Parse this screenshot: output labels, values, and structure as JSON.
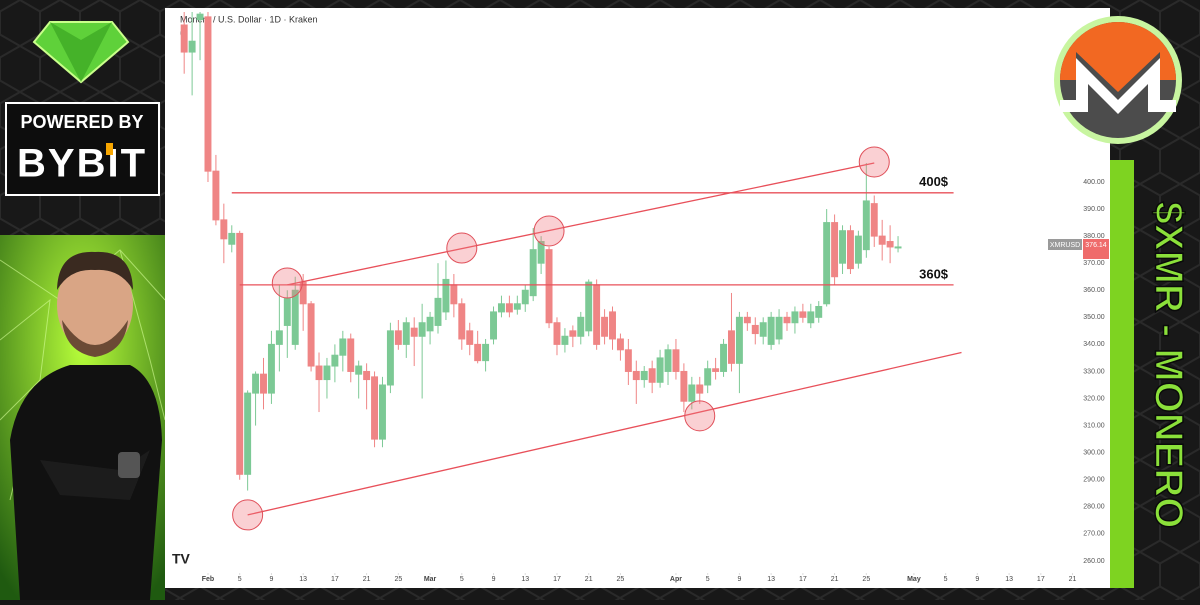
{
  "sidebar": {
    "powered_by": "POWERED BY",
    "brand": "BYBIT"
  },
  "banner": "$XMR - MONERO",
  "chart_data": {
    "type": "candlestick",
    "title": "Monero / U.S. Dollar · 1D · Kraken",
    "subtitle": "6",
    "symbol": "XMRUSD",
    "last_price": "376.14",
    "up_color": "#7cc995",
    "down_color": "#ef8585",
    "line_color": "#e8505a",
    "x": [
      29,
      30,
      31,
      32,
      33,
      34,
      35,
      36,
      37,
      38,
      39,
      40,
      41,
      42,
      43,
      44,
      45,
      46,
      47,
      48,
      49,
      50,
      51,
      52,
      53,
      54,
      55,
      56,
      57,
      58,
      59,
      60,
      61,
      62,
      63,
      64,
      65,
      66,
      67,
      68,
      69,
      70,
      71,
      72,
      73,
      74,
      75,
      76,
      77,
      78,
      79,
      80,
      81,
      82,
      83,
      84,
      85,
      86,
      87,
      88,
      89,
      90,
      91,
      92,
      93,
      94,
      95,
      96,
      97,
      98,
      99,
      100,
      101,
      102,
      103,
      104,
      105,
      106,
      107,
      108,
      109,
      110,
      111,
      112,
      113,
      114,
      115,
      116,
      117,
      118,
      119
    ],
    "open": [
      458,
      448,
      460,
      461,
      404,
      386,
      377,
      381,
      292,
      322,
      329,
      322,
      340,
      347,
      340,
      363,
      355,
      332,
      327,
      332,
      336,
      342,
      329,
      330,
      328,
      305,
      325,
      345,
      340,
      346,
      343,
      345,
      347,
      352,
      362,
      355,
      345,
      340,
      334,
      342,
      352,
      355,
      353,
      355,
      358,
      370,
      375,
      348,
      340,
      345,
      343,
      345,
      362,
      350,
      352,
      342,
      338,
      330,
      327,
      331,
      326,
      330,
      338,
      330,
      319,
      325,
      325,
      331,
      330,
      345,
      333,
      350,
      347,
      343,
      340,
      342,
      350,
      348,
      352,
      348,
      350,
      355,
      385,
      370,
      382,
      370,
      375,
      392,
      380,
      378,
      376
    ],
    "high": [
      470,
      466,
      470,
      463,
      410,
      392,
      384,
      382,
      323,
      330,
      335,
      345,
      362,
      360,
      365,
      366,
      356,
      337,
      335,
      340,
      345,
      344,
      334,
      333,
      330,
      328,
      348,
      349,
      350,
      350,
      355,
      352,
      370,
      371,
      366,
      357,
      348,
      345,
      342,
      354,
      358,
      358,
      358,
      362,
      383,
      380,
      376,
      350,
      346,
      347,
      352,
      364,
      364,
      353,
      354,
      344,
      342,
      334,
      332,
      334,
      338,
      340,
      342,
      333,
      328,
      328,
      334,
      335,
      342,
      359,
      352,
      352,
      350,
      350,
      352,
      353,
      352,
      354,
      355,
      355,
      356,
      390,
      388,
      384,
      384,
      382,
      407,
      395,
      386,
      384,
      380
    ],
    "low": [
      440,
      432,
      445,
      400,
      384,
      370,
      374,
      290,
      286,
      310,
      316,
      318,
      330,
      335,
      338,
      345,
      330,
      315,
      320,
      326,
      330,
      326,
      320,
      316,
      302,
      302,
      322,
      338,
      335,
      332,
      320,
      340,
      344,
      349,
      350,
      338,
      336,
      333,
      330,
      340,
      350,
      350,
      351,
      352,
      356,
      366,
      346,
      336,
      337,
      339,
      340,
      343,
      338,
      340,
      338,
      334,
      325,
      318,
      324,
      322,
      324,
      325,
      327,
      315,
      316,
      318,
      322,
      327,
      328,
      330,
      322,
      345,
      340,
      340,
      338,
      340,
      345,
      344,
      348,
      346,
      348,
      354,
      362,
      366,
      366,
      368,
      372,
      376,
      371,
      370,
      374
    ],
    "close": [
      448,
      452,
      462,
      404,
      386,
      379,
      381,
      292,
      322,
      329,
      322,
      340,
      345,
      357,
      360,
      355,
      332,
      327,
      332,
      336,
      342,
      330,
      332,
      327,
      305,
      325,
      345,
      340,
      348,
      343,
      348,
      350,
      357,
      364,
      355,
      342,
      340,
      334,
      340,
      352,
      355,
      352,
      355,
      360,
      375,
      378,
      348,
      340,
      343,
      343,
      350,
      363,
      340,
      343,
      342,
      338,
      330,
      327,
      330,
      326,
      335,
      338,
      330,
      319,
      325,
      322,
      331,
      330,
      340,
      333,
      350,
      348,
      344,
      348,
      350,
      350,
      348,
      352,
      350,
      352,
      354,
      385,
      365,
      382,
      368,
      380,
      393,
      380,
      377,
      376,
      376
    ],
    "xlim": [
      26.96,
      143.2
    ],
    "ylim": [
      254.8,
      462.8
    ],
    "yticks": [
      {
        "value": 260,
        "label": "260.00"
      },
      {
        "value": 270,
        "label": "270.00"
      },
      {
        "value": 280,
        "label": "280.00"
      },
      {
        "value": 290,
        "label": "290.00"
      },
      {
        "value": 300,
        "label": "300.00"
      },
      {
        "value": 310,
        "label": "310.00"
      },
      {
        "value": 320,
        "label": "320.00"
      },
      {
        "value": 330,
        "label": "330.00"
      },
      {
        "value": 340,
        "label": "340.00"
      },
      {
        "value": 350,
        "label": "350.00"
      },
      {
        "value": 360,
        "label": "360.00"
      },
      {
        "value": 370,
        "label": "370.00"
      },
      {
        "value": 380,
        "label": "380.00"
      },
      {
        "value": 390,
        "label": "390.00"
      },
      {
        "value": 400,
        "label": "400.00"
      }
    ],
    "xticks": [
      {
        "value": 32,
        "label": "Feb"
      },
      {
        "value": 36,
        "label": "5"
      },
      {
        "value": 40,
        "label": "9"
      },
      {
        "value": 44,
        "label": "13"
      },
      {
        "value": 48,
        "label": "17"
      },
      {
        "value": 52,
        "label": "21"
      },
      {
        "value": 56,
        "label": "25"
      },
      {
        "value": 60,
        "label": "Mar"
      },
      {
        "value": 64,
        "label": "5"
      },
      {
        "value": 68,
        "label": "9"
      },
      {
        "value": 72,
        "label": "13"
      },
      {
        "value": 76,
        "label": "17"
      },
      {
        "value": 80,
        "label": "21"
      },
      {
        "value": 84,
        "label": "25"
      },
      {
        "value": 91,
        "label": "Apr"
      },
      {
        "value": 95,
        "label": "5"
      },
      {
        "value": 99,
        "label": "9"
      },
      {
        "value": 103,
        "label": "13"
      },
      {
        "value": 107,
        "label": "17"
      },
      {
        "value": 111,
        "label": "21"
      },
      {
        "value": 115,
        "label": "25"
      },
      {
        "value": 121,
        "label": "May"
      },
      {
        "value": 125,
        "label": "5"
      },
      {
        "value": 129,
        "label": "9"
      },
      {
        "value": 133,
        "label": "13"
      },
      {
        "value": 137,
        "label": "17"
      },
      {
        "value": 141,
        "label": "21"
      }
    ],
    "hlines": [
      {
        "y": 396,
        "x": [
          35,
          126
        ]
      },
      {
        "y": 362,
        "x": [
          36,
          126
        ]
      }
    ],
    "annotations": [
      "400$",
      "360$"
    ],
    "trendlines": [
      {
        "x": [
          42,
          116
        ],
        "y": [
          362,
          407
        ]
      },
      {
        "x": [
          37,
          127
        ],
        "y": [
          277,
          337
        ]
      }
    ],
    "highlights": {
      "x": [
        37,
        42,
        64,
        75,
        94,
        116
      ],
      "y": [
        277,
        362.7,
        375.6,
        381.9,
        313.6,
        407.4
      ]
    }
  }
}
